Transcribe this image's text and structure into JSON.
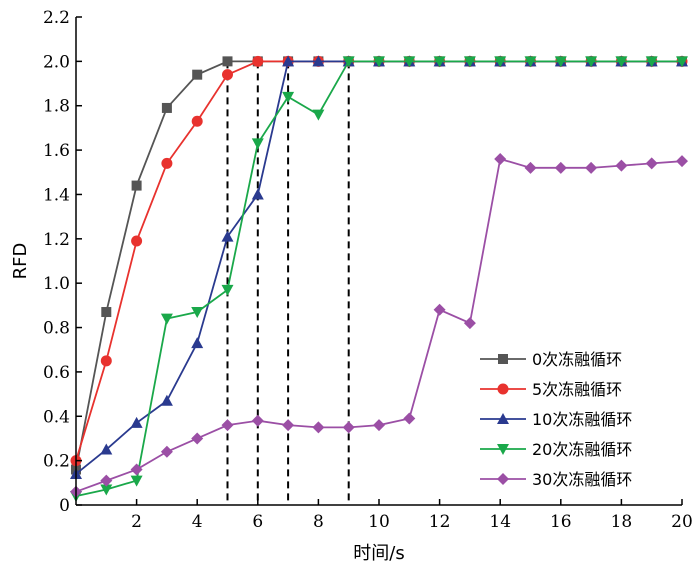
{
  "chart_data": {
    "type": "line",
    "xlabel": "时间/s",
    "ylabel": "RFD",
    "xlim": [
      0,
      20
    ],
    "ylim": [
      0,
      2.2
    ],
    "xticks": [
      2,
      4,
      6,
      8,
      10,
      12,
      14,
      16,
      18,
      20
    ],
    "xtick_labels": [
      "2",
      "4",
      "6",
      "8",
      "10",
      "12",
      "14",
      "16",
      "18",
      "20"
    ],
    "yticks": [
      0,
      0.2,
      0.4,
      0.6,
      0.8,
      1.0,
      1.2,
      1.4,
      1.6,
      1.8,
      2.0,
      2.2
    ],
    "ytick_labels": [
      "0",
      "0.2",
      "0.4",
      "0.6",
      "0.8",
      "1.0",
      "1.2",
      "1.4",
      "1.6",
      "1.8",
      "2.0",
      "2.2"
    ],
    "grid": false,
    "legend_position": "bottom-right",
    "reference_lines_x": [
      5,
      6,
      7,
      9
    ],
    "series": [
      {
        "name": "0次冻融循环",
        "color": "#555555",
        "marker": "square",
        "x": [
          0,
          1,
          2,
          3,
          4,
          5,
          6,
          7,
          8,
          9,
          10,
          11,
          12,
          13,
          14,
          15,
          16,
          17,
          18,
          19,
          20
        ],
        "y": [
          0.16,
          0.87,
          1.44,
          1.79,
          1.94,
          2.0,
          2.0,
          2.0,
          2.0,
          2.0,
          2.0,
          2.0,
          2.0,
          2.0,
          2.0,
          2.0,
          2.0,
          2.0,
          2.0,
          2.0,
          2.0
        ]
      },
      {
        "name": "5次冻融循环",
        "color": "#e8322e",
        "marker": "circle",
        "x": [
          0,
          1,
          2,
          3,
          4,
          5,
          6,
          7,
          8,
          9,
          10,
          11,
          12,
          13,
          14,
          15,
          16,
          17,
          18,
          19,
          20
        ],
        "y": [
          0.2,
          0.65,
          1.19,
          1.54,
          1.73,
          1.94,
          2.0,
          2.0,
          2.0,
          2.0,
          2.0,
          2.0,
          2.0,
          2.0,
          2.0,
          2.0,
          2.0,
          2.0,
          2.0,
          2.0,
          2.0
        ]
      },
      {
        "name": "10次冻融循环",
        "color": "#2a3a8f",
        "marker": "triangle-up",
        "x": [
          0,
          1,
          2,
          3,
          4,
          5,
          6,
          7,
          8,
          9,
          10,
          11,
          12,
          13,
          14,
          15,
          16,
          17,
          18,
          19,
          20
        ],
        "y": [
          0.14,
          0.25,
          0.37,
          0.47,
          0.73,
          1.21,
          1.4,
          2.0,
          2.0,
          2.0,
          2.0,
          2.0,
          2.0,
          2.0,
          2.0,
          2.0,
          2.0,
          2.0,
          2.0,
          2.0,
          2.0
        ]
      },
      {
        "name": "20次冻融循环",
        "color": "#1aa84a",
        "marker": "triangle-down",
        "x": [
          0,
          1,
          2,
          3,
          4,
          5,
          6,
          7,
          8,
          9,
          10,
          11,
          12,
          13,
          14,
          15,
          16,
          17,
          18,
          19,
          20
        ],
        "y": [
          0.04,
          0.07,
          0.11,
          0.84,
          0.87,
          0.97,
          1.63,
          1.84,
          1.76,
          2.0,
          2.0,
          2.0,
          2.0,
          2.0,
          2.0,
          2.0,
          2.0,
          2.0,
          2.0,
          2.0,
          2.0
        ]
      },
      {
        "name": "30次冻融循环",
        "color": "#9b4fa5",
        "marker": "diamond",
        "x": [
          0,
          1,
          2,
          3,
          4,
          5,
          6,
          7,
          8,
          9,
          10,
          11,
          12,
          13,
          14,
          15,
          16,
          17,
          18,
          19,
          20
        ],
        "y": [
          0.06,
          0.11,
          0.16,
          0.24,
          0.3,
          0.36,
          0.38,
          0.36,
          0.35,
          0.35,
          0.36,
          0.39,
          0.88,
          0.82,
          1.56,
          1.52,
          1.52,
          1.52,
          1.53,
          1.54,
          1.55
        ]
      }
    ]
  }
}
